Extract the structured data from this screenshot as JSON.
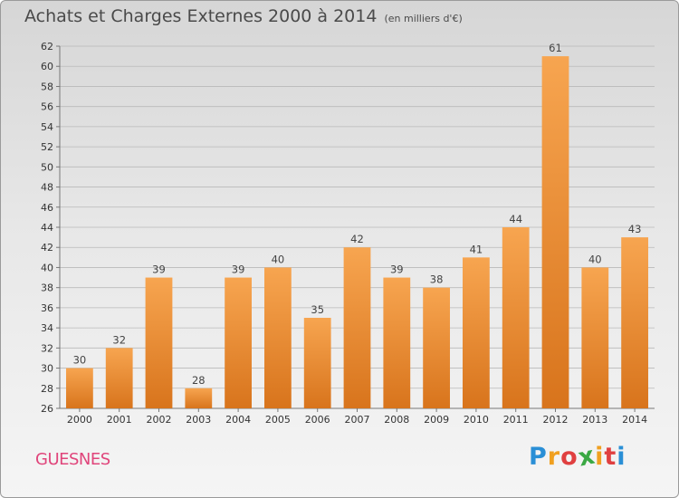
{
  "header": {
    "title": "Achats et Charges Externes 2000 à 2014",
    "subtitle": "(en milliers d'€)"
  },
  "footer": {
    "place": "GUESNES",
    "logo": {
      "letters": [
        "P",
        "r",
        "o",
        "x",
        "i",
        "t",
        "i"
      ],
      "colors": [
        "#2a8fd6",
        "#f0a020",
        "#e04040",
        "#3aa843",
        "#f0a020",
        "#e04040",
        "#2a8fd6"
      ]
    }
  },
  "chart_data": {
    "type": "bar",
    "categories": [
      "2000",
      "2001",
      "2002",
      "2003",
      "2004",
      "2005",
      "2006",
      "2007",
      "2008",
      "2009",
      "2010",
      "2011",
      "2012",
      "2013",
      "2014"
    ],
    "values": [
      30,
      32,
      39,
      28,
      39,
      40,
      35,
      42,
      39,
      38,
      41,
      44,
      61,
      40,
      43
    ],
    "ylim": [
      26,
      62
    ],
    "yticks": [
      26,
      28,
      30,
      32,
      34,
      36,
      38,
      40,
      42,
      44,
      46,
      48,
      50,
      52,
      54,
      56,
      58,
      60,
      62
    ],
    "grid": true,
    "bar_color_light": "#f7a550",
    "bar_color_dark": "#d8741c"
  }
}
